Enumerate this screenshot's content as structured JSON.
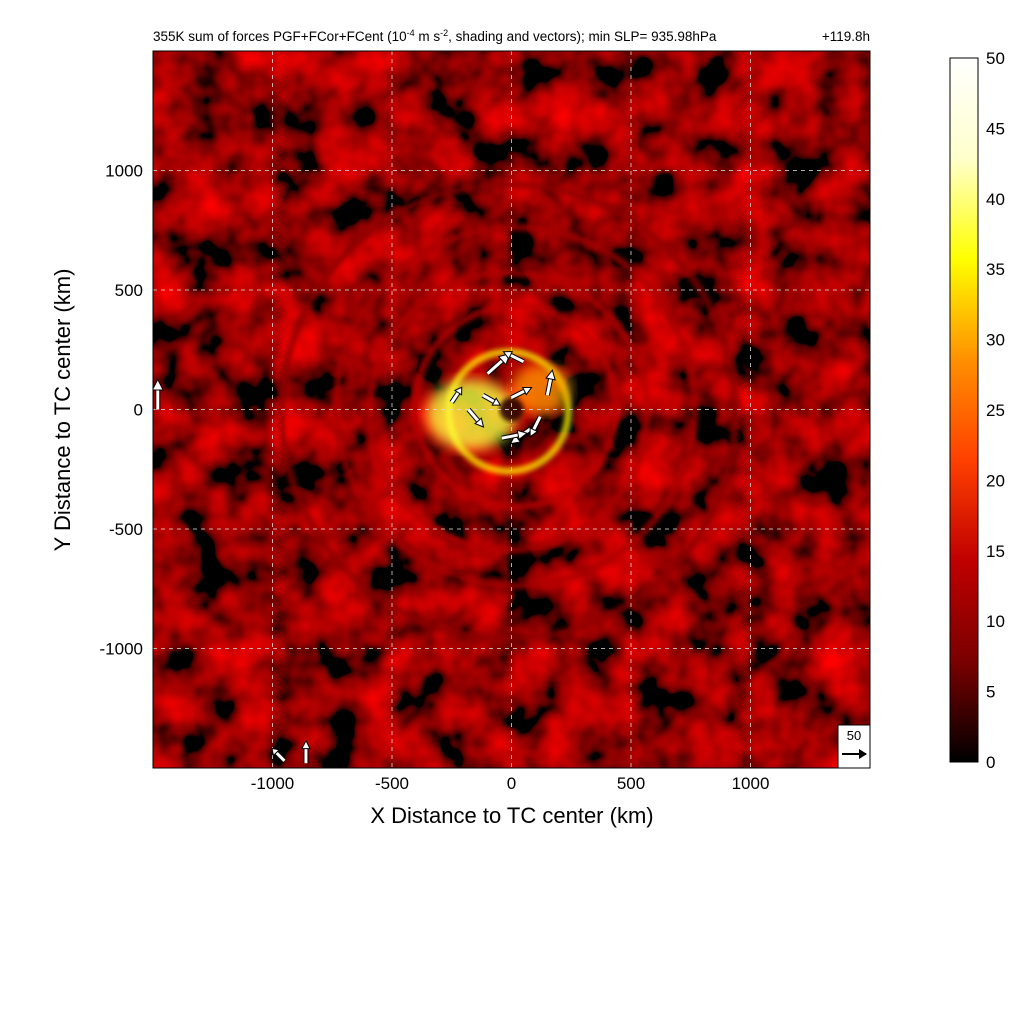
{
  "chart_data": {
    "type": "heatmap",
    "title_parts": {
      "before_sup": "355K sum of forces PGF+FCor+FCent (10",
      "sup1": "-4",
      "mid": " m s",
      "sup2": "-2",
      "after_sup": ", shading and vectors); min SLP= 935.98hPa",
      "time": "+119.8h"
    },
    "xlabel": "X Distance to TC center (km)",
    "ylabel": "Y Distance to TC center (km)",
    "xlim": [
      -1500,
      1500
    ],
    "ylim": [
      -1500,
      1500
    ],
    "xticks": [
      -1000,
      -500,
      0,
      500,
      1000
    ],
    "yticks": [
      -1000,
      -500,
      0,
      500,
      1000
    ],
    "grid": true,
    "colorbar": {
      "range": [
        0,
        50
      ],
      "ticks": [
        0,
        5,
        10,
        15,
        20,
        25,
        30,
        35,
        40,
        45,
        50
      ],
      "colors": [
        "#000000",
        "#7a0000",
        "#c00000",
        "#ff4000",
        "#ff9000",
        "#ffff00",
        "#ffffcc",
        "#ffffff"
      ],
      "placement": "right"
    },
    "reference_vector": {
      "value": 50,
      "label": "50"
    },
    "rings": [
      {
        "radius_km": 250,
        "value": 35
      },
      {
        "radius_km": 420,
        "value": 14
      },
      {
        "radius_km": 580,
        "value": 13
      },
      {
        "radius_km": 750,
        "value": 12
      },
      {
        "radius_km": 950,
        "value": 9
      }
    ],
    "vectors": [
      {
        "x": 0,
        "y": 50,
        "u": 40,
        "v": 20
      },
      {
        "x": -100,
        "y": 150,
        "u": 45,
        "v": 40
      },
      {
        "x": -180,
        "y": 0,
        "u": 30,
        "v": -35
      },
      {
        "x": 80,
        "y": -80,
        "u": -40,
        "v": -30
      },
      {
        "x": 150,
        "y": 60,
        "u": 10,
        "v": 50
      },
      {
        "x": 50,
        "y": 200,
        "u": -40,
        "v": 20
      },
      {
        "x": -250,
        "y": 30,
        "u": 20,
        "v": 30
      },
      {
        "x": -40,
        "y": -120,
        "u": 50,
        "v": 10
      },
      {
        "x": 120,
        "y": -30,
        "u": -20,
        "v": -40
      },
      {
        "x": -120,
        "y": 60,
        "u": 35,
        "v": -20
      },
      {
        "x": -1480,
        "y": 0,
        "u": 0,
        "v": 60
      },
      {
        "x": -860,
        "y": -1480,
        "u": 0,
        "v": 45
      },
      {
        "x": -950,
        "y": -1470,
        "u": -25,
        "v": 25
      }
    ]
  }
}
